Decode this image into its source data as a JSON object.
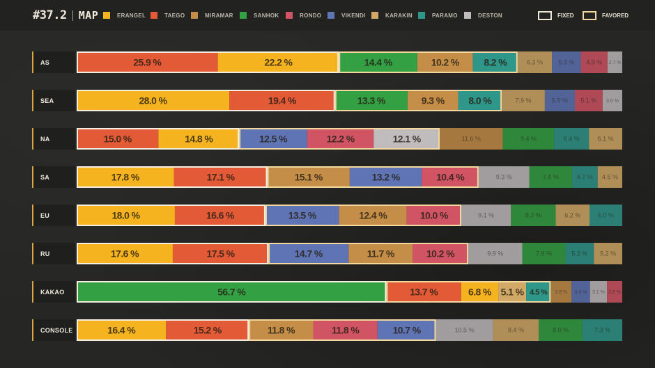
{
  "header": {
    "patch": "#37.2",
    "section": "MAP",
    "legend": [
      {
        "label": "ERANGEL",
        "color": "#f5b31f"
      },
      {
        "label": "TAEGO",
        "color": "#e35a36"
      },
      {
        "label": "MIRAMAR",
        "color": "#c58e48"
      },
      {
        "label": "SANHOK",
        "color": "#34a044"
      },
      {
        "label": "RONDO",
        "color": "#d05463"
      },
      {
        "label": "VIKENDI",
        "color": "#5f74b4"
      },
      {
        "label": "KARAKIN",
        "color": "#d1a865"
      },
      {
        "label": "PARAMO",
        "color": "#2f968a"
      },
      {
        "label": "DESTON",
        "color": "#c0bbbd"
      }
    ],
    "key": {
      "fixed": "FIXED",
      "favored": "FAVORED"
    }
  },
  "chart_data": {
    "type": "bar",
    "orientation": "horizontal",
    "stacked": true,
    "unit": "%",
    "regions": [
      {
        "name": "AS",
        "segments": [
          {
            "map": "TAEGO",
            "value": 25.9,
            "label": "25.9 %",
            "group": "fixed"
          },
          {
            "map": "ERANGEL",
            "value": 22.2,
            "label": "22.2 %",
            "group": "fixed"
          },
          {
            "map": "SANHOK",
            "value": 14.4,
            "label": "14.4 %",
            "group": "favored"
          },
          {
            "map": "MIRAMAR",
            "value": 10.2,
            "label": "10.2 %",
            "group": "favored"
          },
          {
            "map": "PARAMO",
            "value": 8.2,
            "label": "8.2 %",
            "group": "favored"
          },
          {
            "map": "KARAKIN",
            "value": 6.3,
            "label": "6.3 %",
            "group": "other"
          },
          {
            "map": "VIKENDI",
            "value": 5.3,
            "label": "5.3 %",
            "group": "other"
          },
          {
            "map": "RONDO",
            "value": 4.9,
            "label": "4.9 %",
            "group": "other"
          },
          {
            "map": "DESTON",
            "value": 2.7,
            "label": "2.7 %",
            "group": "other"
          }
        ]
      },
      {
        "name": "SEA",
        "segments": [
          {
            "map": "ERANGEL",
            "value": 28.0,
            "label": "28.0 %",
            "group": "fixed"
          },
          {
            "map": "TAEGO",
            "value": 19.4,
            "label": "19.4 %",
            "group": "fixed"
          },
          {
            "map": "SANHOK",
            "value": 13.3,
            "label": "13.3 %",
            "group": "favored"
          },
          {
            "map": "MIRAMAR",
            "value": 9.3,
            "label": "9.3 %",
            "group": "favored"
          },
          {
            "map": "PARAMO",
            "value": 8.0,
            "label": "8.0 %",
            "group": "favored"
          },
          {
            "map": "KARAKIN",
            "value": 7.9,
            "label": "7.9 %",
            "group": "other"
          },
          {
            "map": "VIKENDI",
            "value": 5.5,
            "label": "5.5 %",
            "group": "other"
          },
          {
            "map": "RONDO",
            "value": 5.1,
            "label": "5.1 %",
            "group": "other"
          },
          {
            "map": "DESTON",
            "value": 3.6,
            "label": "3.6 %",
            "group": "other"
          }
        ]
      },
      {
        "name": "NA",
        "segments": [
          {
            "map": "TAEGO",
            "value": 15.0,
            "label": "15.0 %",
            "group": "fixed"
          },
          {
            "map": "ERANGEL",
            "value": 14.8,
            "label": "14.8 %",
            "group": "fixed"
          },
          {
            "map": "VIKENDI",
            "value": 12.5,
            "label": "12.5 %",
            "group": "favored"
          },
          {
            "map": "RONDO",
            "value": 12.2,
            "label": "12.2 %",
            "group": "favored"
          },
          {
            "map": "DESTON",
            "value": 12.1,
            "label": "12.1 %",
            "group": "favored"
          },
          {
            "map": "MIRAMAR",
            "value": 11.6,
            "label": "11.6 %",
            "group": "other"
          },
          {
            "map": "SANHOK",
            "value": 9.4,
            "label": "9.4 %",
            "group": "other"
          },
          {
            "map": "PARAMO",
            "value": 6.4,
            "label": "6.4 %",
            "group": "other"
          },
          {
            "map": "KARAKIN",
            "value": 6.1,
            "label": "6.1 %",
            "group": "other"
          }
        ]
      },
      {
        "name": "SA",
        "segments": [
          {
            "map": "ERANGEL",
            "value": 17.8,
            "label": "17.8 %",
            "group": "fixed"
          },
          {
            "map": "TAEGO",
            "value": 17.1,
            "label": "17.1 %",
            "group": "fixed"
          },
          {
            "map": "MIRAMAR",
            "value": 15.1,
            "label": "15.1 %",
            "group": "favored"
          },
          {
            "map": "VIKENDI",
            "value": 13.2,
            "label": "13.2 %",
            "group": "favored"
          },
          {
            "map": "RONDO",
            "value": 10.4,
            "label": "10.4 %",
            "group": "favored"
          },
          {
            "map": "DESTON",
            "value": 9.3,
            "label": "9.3 %",
            "group": "other"
          },
          {
            "map": "SANHOK",
            "value": 7.8,
            "label": "7.8 %",
            "group": "other"
          },
          {
            "map": "PARAMO",
            "value": 4.7,
            "label": "4.7 %",
            "group": "other"
          },
          {
            "map": "KARAKIN",
            "value": 4.5,
            "label": "4.5 %",
            "group": "other"
          }
        ]
      },
      {
        "name": "EU",
        "segments": [
          {
            "map": "ERANGEL",
            "value": 18.0,
            "label": "18.0 %",
            "group": "fixed"
          },
          {
            "map": "TAEGO",
            "value": 16.6,
            "label": "16.6 %",
            "group": "fixed"
          },
          {
            "map": "VIKENDI",
            "value": 13.5,
            "label": "13.5 %",
            "group": "favored"
          },
          {
            "map": "MIRAMAR",
            "value": 12.4,
            "label": "12.4 %",
            "group": "favored"
          },
          {
            "map": "RONDO",
            "value": 10.0,
            "label": "10.0 %",
            "group": "favored"
          },
          {
            "map": "DESTON",
            "value": 9.1,
            "label": "9.1 %",
            "group": "other"
          },
          {
            "map": "SANHOK",
            "value": 8.2,
            "label": "8.2 %",
            "group": "other"
          },
          {
            "map": "KARAKIN",
            "value": 6.2,
            "label": "6.2 %",
            "group": "other"
          },
          {
            "map": "PARAMO",
            "value": 6.0,
            "label": "6.0 %",
            "group": "other"
          }
        ]
      },
      {
        "name": "RU",
        "segments": [
          {
            "map": "ERANGEL",
            "value": 17.6,
            "label": "17.6 %",
            "group": "fixed"
          },
          {
            "map": "TAEGO",
            "value": 17.5,
            "label": "17.5 %",
            "group": "fixed"
          },
          {
            "map": "VIKENDI",
            "value": 14.7,
            "label": "14.7 %",
            "group": "favored"
          },
          {
            "map": "MIRAMAR",
            "value": 11.7,
            "label": "11.7 %",
            "group": "favored"
          },
          {
            "map": "RONDO",
            "value": 10.2,
            "label": "10.2 %",
            "group": "favored"
          },
          {
            "map": "DESTON",
            "value": 9.9,
            "label": "9.9 %",
            "group": "other"
          },
          {
            "map": "SANHOK",
            "value": 7.9,
            "label": "7.9 %",
            "group": "other"
          },
          {
            "map": "PARAMO",
            "value": 5.2,
            "label": "5.2 %",
            "group": "other"
          },
          {
            "map": "KARAKIN",
            "value": 5.2,
            "label": "5.2 %",
            "group": "other"
          }
        ]
      },
      {
        "name": "KAKAO",
        "segments": [
          {
            "map": "SANHOK",
            "value": 56.7,
            "label": "56.7 %",
            "group": "fixed"
          },
          {
            "map": "TAEGO",
            "value": 13.7,
            "label": "13.7 %",
            "group": "favored"
          },
          {
            "map": "ERANGEL",
            "value": 6.8,
            "label": "6.8 %",
            "group": "favored"
          },
          {
            "map": "KARAKIN",
            "value": 5.1,
            "label": "5.1 %",
            "group": "favored"
          },
          {
            "map": "PARAMO",
            "value": 4.5,
            "label": "4.5 %",
            "group": "favored"
          },
          {
            "map": "MIRAMAR",
            "value": 3.8,
            "label": "3.8 %",
            "group": "other"
          },
          {
            "map": "VIKENDI",
            "value": 3.4,
            "label": "3.4 %",
            "group": "other"
          },
          {
            "map": "DESTON",
            "value": 3.1,
            "label": "3.1 %",
            "group": "other"
          },
          {
            "map": "RONDO",
            "value": 2.8,
            "label": "2.8 %",
            "group": "other"
          }
        ]
      },
      {
        "name": "CONSOLE",
        "segments": [
          {
            "map": "ERANGEL",
            "value": 16.4,
            "label": "16.4 %",
            "group": "fixed"
          },
          {
            "map": "TAEGO",
            "value": 15.2,
            "label": "15.2 %",
            "group": "fixed"
          },
          {
            "map": "MIRAMAR",
            "value": 11.8,
            "label": "11.8 %",
            "group": "favored"
          },
          {
            "map": "RONDO",
            "value": 11.8,
            "label": "11.8 %",
            "group": "favored"
          },
          {
            "map": "VIKENDI",
            "value": 10.7,
            "label": "10.7 %",
            "group": "favored"
          },
          {
            "map": "DESTON",
            "value": 10.5,
            "label": "10.5 %",
            "group": "other"
          },
          {
            "map": "KARAKIN",
            "value": 8.4,
            "label": "8.4 %",
            "group": "other"
          },
          {
            "map": "SANHOK",
            "value": 8.0,
            "label": "8.0 %",
            "group": "other"
          },
          {
            "map": "PARAMO",
            "value": 7.3,
            "label": "7.3 %",
            "group": "other"
          }
        ]
      }
    ]
  }
}
